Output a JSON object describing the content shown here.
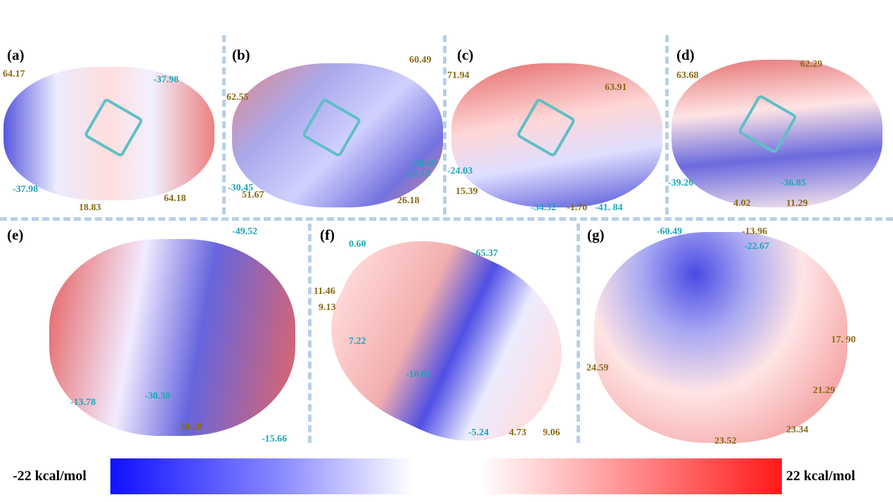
{
  "panels": {
    "a": {
      "label": "(a)",
      "values": [
        "64.17",
        "-37.98",
        "-37.98",
        "18.83",
        "64.18"
      ]
    },
    "b": {
      "label": "(b)",
      "values": [
        "60.49",
        "62.55",
        "-30.45",
        "-21.13",
        "-30.45",
        "51.67",
        "26.18"
      ]
    },
    "c": {
      "label": "(c)",
      "values": [
        "71.94",
        "63.91",
        "-24.03",
        "15.39",
        "-34.52",
        "-1.70",
        "-41. 84"
      ]
    },
    "d": {
      "label": "(d)",
      "values": [
        "63.68",
        "62.29",
        "-39.26",
        "-36.85",
        "4.02",
        "11.29"
      ]
    },
    "e": {
      "label": "(e)",
      "values": [
        "-49.52",
        "-13.78",
        "-30.38",
        "30.28",
        "-15.66"
      ]
    },
    "f": {
      "label": "(f)",
      "values": [
        "0.60",
        "-65.37",
        "11.46",
        "9.13",
        "7.22",
        "-10.01",
        "-5.24",
        "4.73",
        "9.06"
      ]
    },
    "g": {
      "label": "(g)",
      "values": [
        "-60.49",
        "-13.96",
        "-22.67",
        "24.59",
        "17. 90",
        "21.29",
        "23.52",
        "23.34"
      ]
    }
  },
  "colorbar": {
    "min_label": "-22 kcal/mol",
    "max_label": "22 kcal/mol",
    "min": -22,
    "max": 22,
    "colors": [
      "#1010ff",
      "#ffffff",
      "#ff1a1a"
    ]
  },
  "colors": {
    "negative": "#1ea6b8",
    "positive": "#8a6a16"
  }
}
